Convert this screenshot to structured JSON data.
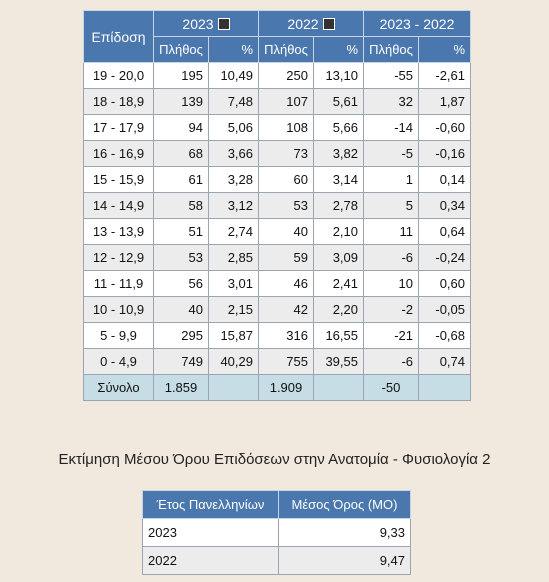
{
  "stats": {
    "col_grade": "Επίδοση",
    "year1": "2023",
    "year2": "2022",
    "diff": "2023 - 2022",
    "count_label": "Πλήθος",
    "pct_label": "%",
    "rows": [
      {
        "grade": "19 - 20,0",
        "c1": "195",
        "p1": "10,49",
        "c2": "250",
        "p2": "13,10",
        "dc": "-55",
        "dp": "-2,61"
      },
      {
        "grade": "18 - 18,9",
        "c1": "139",
        "p1": "7,48",
        "c2": "107",
        "p2": "5,61",
        "dc": "32",
        "dp": "1,87"
      },
      {
        "grade": "17 - 17,9",
        "c1": "94",
        "p1": "5,06",
        "c2": "108",
        "p2": "5,66",
        "dc": "-14",
        "dp": "-0,60"
      },
      {
        "grade": "16 - 16,9",
        "c1": "68",
        "p1": "3,66",
        "c2": "73",
        "p2": "3,82",
        "dc": "-5",
        "dp": "-0,16"
      },
      {
        "grade": "15 - 15,9",
        "c1": "61",
        "p1": "3,28",
        "c2": "60",
        "p2": "3,14",
        "dc": "1",
        "dp": "0,14"
      },
      {
        "grade": "14 - 14,9",
        "c1": "58",
        "p1": "3,12",
        "c2": "53",
        "p2": "2,78",
        "dc": "5",
        "dp": "0,34"
      },
      {
        "grade": "13 - 13,9",
        "c1": "51",
        "p1": "2,74",
        "c2": "40",
        "p2": "2,10",
        "dc": "11",
        "dp": "0,64"
      },
      {
        "grade": "12 - 12,9",
        "c1": "53",
        "p1": "2,85",
        "c2": "59",
        "p2": "3,09",
        "dc": "-6",
        "dp": "-0,24"
      },
      {
        "grade": "11 - 11,9",
        "c1": "56",
        "p1": "3,01",
        "c2": "46",
        "p2": "2,41",
        "dc": "10",
        "dp": "0,60"
      },
      {
        "grade": "10 - 10,9",
        "c1": "40",
        "p1": "2,15",
        "c2": "42",
        "p2": "2,20",
        "dc": "-2",
        "dp": "-0,05"
      },
      {
        "grade": "5 - 9,9",
        "c1": "295",
        "p1": "15,87",
        "c2": "316",
        "p2": "16,55",
        "dc": "-21",
        "dp": "-0,68"
      },
      {
        "grade": "0 - 4,9",
        "c1": "749",
        "p1": "40,29",
        "c2": "755",
        "p2": "39,55",
        "dc": "-6",
        "dp": "0,74"
      }
    ],
    "total": {
      "label": "Σύνολο",
      "c1": "1.859",
      "c2": "1.909",
      "dc": "-50"
    }
  },
  "section_title": "Εκτίμηση Μέσου Όρου Επιδόσεων στην Ανατομία - Φυσιολογία 2",
  "avg": {
    "col_year": "Έτος Πανελληνίων",
    "col_mean": "Μέσος Όρος (ΜΟ)",
    "rows": [
      {
        "year": "2023",
        "mean": "9,33"
      },
      {
        "year": "2022",
        "mean": "9,47"
      }
    ]
  },
  "colors": {
    "header": "#4a77ad",
    "total_row": "#c6dde6",
    "background": "#f2e9de"
  }
}
